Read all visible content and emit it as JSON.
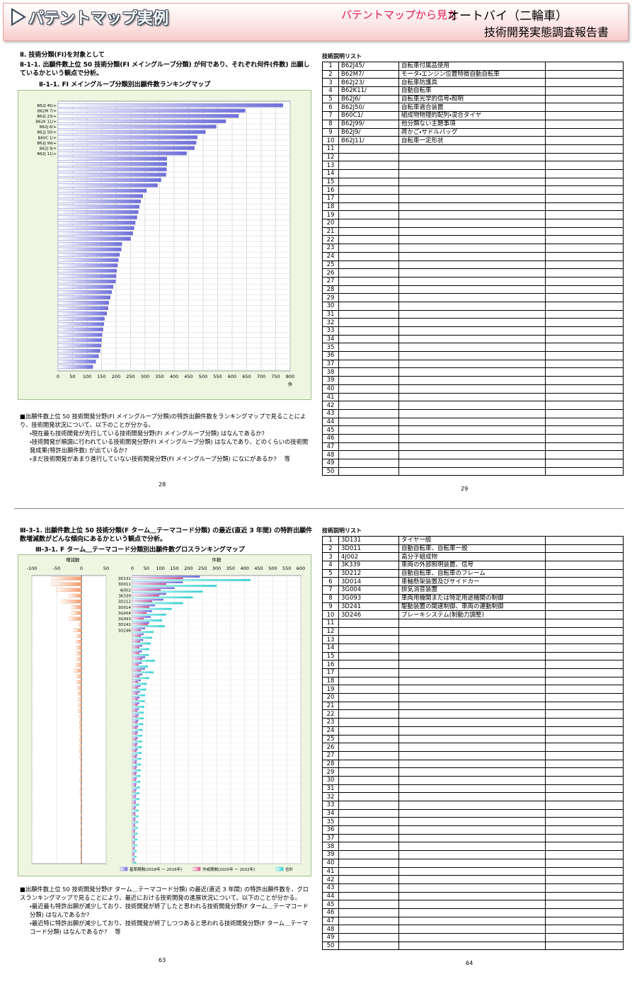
{
  "header": {
    "title": "パテントマップ実例",
    "subtitle": "パテントマップから見た",
    "product": "オートバイ（二輪車）",
    "report": "技術開発実態調査報告書"
  },
  "pages": [
    {
      "section": "Ⅱ. 技術分類(FI)を対象として",
      "heading": "Ⅱ-1-1. 出願件数上位 50 技術分類(FI メイングループ分類) が何であり、それぞれ何件(件数) 出願しているかという観点で分析。",
      "paragraph": "■出願件数上位 50 技術開発分野(FI メイングループ分類)の特許出願件数をランキングマップで見ることにより、技術開発状況について、以下のことが分かる。",
      "bullets": [
        "・現在最も技術開発が先行している技術開発分野(FI メイングループ分類) はなんであるか?",
        "・技術開発が順調に行われている技術開発分野(FI メイングループ分類) はなんであり、どのくらいの技術開発成果(特許出願件数) が出ているか?",
        "・まだ技術開発があまり進行していない技術開発分野(FI メイングループ分類) になにがあるか?　 等"
      ],
      "page_number": 28
    },
    {
      "table_title": "技術説明リスト",
      "page_number": 29,
      "rows": [
        {
          "no": 1,
          "code": "B62J45/",
          "desc": "自転車付属品使用"
        },
        {
          "no": 2,
          "code": "B62M7/",
          "desc": "モータ・エンジン位置特徴自動自転車"
        },
        {
          "no": 3,
          "code": "B62J23/",
          "desc": "自転車防護具"
        },
        {
          "no": 4,
          "code": "B62K11/",
          "desc": "自動自転車"
        },
        {
          "no": 5,
          "code": "B62J6/",
          "desc": "自転車光学的信号・照明"
        },
        {
          "no": 6,
          "code": "B62J50/",
          "desc": "自転車適合装置"
        },
        {
          "no": 7,
          "code": "B60C1/",
          "desc": "組成物物理的配列・混合タイヤ"
        },
        {
          "no": 8,
          "code": "B62J99/",
          "desc": "他分類ない主題事項"
        },
        {
          "no": 9,
          "code": "B62J9/",
          "desc": "荷かご・サドルバッグ"
        },
        {
          "no": 10,
          "code": "B62J11/",
          "desc": "自転車一定形状"
        },
        {
          "no": 11
        },
        {
          "no": 12
        },
        {
          "no": 13
        },
        {
          "no": 14
        },
        {
          "no": 15
        },
        {
          "no": 16
        },
        {
          "no": 17
        },
        {
          "no": 18
        },
        {
          "no": 19
        },
        {
          "no": 20
        },
        {
          "no": 21
        },
        {
          "no": 22
        },
        {
          "no": 23
        },
        {
          "no": 24
        },
        {
          "no": 25
        },
        {
          "no": 26
        },
        {
          "no": 27
        },
        {
          "no": 28
        },
        {
          "no": 29
        },
        {
          "no": 30
        },
        {
          "no": 31
        },
        {
          "no": 32
        },
        {
          "no": 33
        },
        {
          "no": 34
        },
        {
          "no": 35
        },
        {
          "no": 36
        },
        {
          "no": 37
        },
        {
          "no": 38
        },
        {
          "no": 39
        },
        {
          "no": 40
        },
        {
          "no": 41
        },
        {
          "no": 42
        },
        {
          "no": 43
        },
        {
          "no": 44
        },
        {
          "no": 45
        },
        {
          "no": 46
        },
        {
          "no": 47
        },
        {
          "no": 48
        },
        {
          "no": 49
        },
        {
          "no": 50
        }
      ]
    },
    {
      "heading": "Ⅲ-3-1. 出願件数上位 50 技術分類(F ターム＿テーマコード分類) の最近(直近 3 年間) の特許出願件数増減数がどんな傾向にあるかという観点で分析。",
      "paragraph": "■出願件数上位 50 技術開発分野(F ターム＿テーマコード分類) の最近(直近 3 年間) の特許出願件数を、グロスランキングマップで見ることにより、最近における技術開発の進展状況について、以下のことが分かる。",
      "bullets": [
        "・最近最も特許出願が減少しており、技術開発が終了したと思われる技術開発分野(F ターム＿テーマコード分類) はなんであるか?",
        "・最近特に特許出願が減少しており、技術開発が終了しつつあると思われる技術開発分野(F ターム＿テーマコード分類) はなんであるか?　 等"
      ],
      "page_number": 63
    },
    {
      "table_title": "技術説明リスト",
      "page_number": 64,
      "rows": [
        {
          "no": 1,
          "code": "3D131",
          "desc": "タイヤ一般"
        },
        {
          "no": 2,
          "code": "3D011",
          "desc": "自動自転車、自転車一般"
        },
        {
          "no": 3,
          "code": "4J002",
          "desc": "高分子組成物"
        },
        {
          "no": 4,
          "code": "3K339",
          "desc": "車両の外部照明装置、信号"
        },
        {
          "no": 5,
          "code": "3D212",
          "desc": "自動自転車、自転車のフレーム"
        },
        {
          "no": 6,
          "code": "3D014",
          "desc": "車軸懸架装置及びサイドカー"
        },
        {
          "no": 7,
          "code": "3G004",
          "desc": "排気消音装置"
        },
        {
          "no": 8,
          "code": "3G093",
          "desc": "車両用機関または特定用途機関の制御"
        },
        {
          "no": 9,
          "code": "3D241",
          "desc": "駆動装置の関連制御、車両の運動制御"
        },
        {
          "no": 10,
          "code": "3D246",
          "desc": "ブレーキシステム(制動力調整)"
        },
        {
          "no": 11
        },
        {
          "no": 12
        },
        {
          "no": 13
        },
        {
          "no": 14
        },
        {
          "no": 15
        },
        {
          "no": 16
        },
        {
          "no": 17
        },
        {
          "no": 18
        },
        {
          "no": 19
        },
        {
          "no": 20
        },
        {
          "no": 21
        },
        {
          "no": 22
        },
        {
          "no": 23
        },
        {
          "no": 24
        },
        {
          "no": 25
        },
        {
          "no": 26
        },
        {
          "no": 27
        },
        {
          "no": 28
        },
        {
          "no": 29
        },
        {
          "no": 30
        },
        {
          "no": 31
        },
        {
          "no": 32
        },
        {
          "no": 33
        },
        {
          "no": 34
        },
        {
          "no": 35
        },
        {
          "no": 36
        },
        {
          "no": 37
        },
        {
          "no": 38
        },
        {
          "no": 39
        },
        {
          "no": 40
        },
        {
          "no": 41
        },
        {
          "no": 42
        },
        {
          "no": 43
        },
        {
          "no": 44
        },
        {
          "no": 45
        },
        {
          "no": 46
        },
        {
          "no": 47
        },
        {
          "no": 48
        },
        {
          "no": 49
        },
        {
          "no": 50
        }
      ]
    }
  ],
  "chart_data": [
    {
      "type": "bar",
      "orientation": "horizontal",
      "title": "Ⅱ-1-1. FI メイングループ分類別出願件数ランキングマップ",
      "color": "#6f6fd8",
      "grid": true,
      "categories": [
        "B62J 45/+",
        "B62M 7/+",
        "B62J 23/+",
        "B62K 11/+",
        "B62J 6/+",
        "B62J 50/+",
        "B60C 1/+",
        "B62J 99/+",
        "B62J 9/+",
        "B62J 11/+",
        null,
        null,
        null,
        null,
        null,
        null,
        null,
        null,
        null,
        null,
        null,
        null,
        null,
        null,
        null,
        null,
        null,
        null,
        null,
        null,
        null,
        null,
        null,
        null,
        null,
        null,
        null,
        null,
        null,
        null,
        null,
        null,
        null,
        null,
        null,
        null,
        null,
        null,
        null,
        null
      ],
      "values": [
        775,
        645,
        622,
        578,
        545,
        508,
        480,
        476,
        470,
        443,
        375,
        375,
        374,
        372,
        355,
        343,
        305,
        292,
        285,
        280,
        276,
        272,
        266,
        262,
        258,
        250,
        220,
        218,
        212,
        208,
        205,
        202,
        200,
        198,
        190,
        185,
        180,
        175,
        172,
        168,
        160,
        158,
        155,
        152,
        150,
        148,
        145,
        140,
        130,
        120
      ],
      "xlim": [
        0,
        800
      ],
      "xticks": [
        0,
        50,
        100,
        150,
        200,
        250,
        300,
        350,
        400,
        450,
        500,
        550,
        600,
        650,
        700,
        750,
        800
      ],
      "x_label": "件"
    },
    {
      "type": "gross_ranking",
      "title": "Ⅲ-3-1. F ターム＿テーマコード分類別出願件数グロスランキングマップ",
      "grid": true,
      "categories": [
        "3D131",
        "3D011",
        "4J002",
        "3K339",
        "3D212",
        "3D014",
        "3G004",
        "3G093",
        "3D241",
        "3D246",
        null,
        null,
        null,
        null,
        null,
        null,
        null,
        null,
        null,
        null,
        null,
        null,
        null,
        null,
        null,
        null,
        null,
        null,
        null,
        null,
        null,
        null,
        null,
        null,
        null,
        null,
        null,
        null,
        null,
        null,
        null,
        null,
        null,
        null,
        null,
        null,
        null,
        null,
        null,
        null
      ],
      "diff": {
        "label": "増減数",
        "color": "#f29a6a",
        "values": [
          -60,
          -60,
          -50,
          -25,
          -40,
          -20,
          -20,
          -25,
          -5,
          -15,
          -10,
          -11,
          -10,
          -10,
          -10,
          -11,
          -15,
          -10,
          -10,
          -8,
          -7,
          -6,
          -6,
          -6,
          -4,
          -4,
          -4,
          -3,
          -4,
          -3,
          -4,
          -3,
          -2,
          -3,
          -2,
          -3,
          -2,
          -3,
          -2,
          -1,
          -2,
          1,
          -2,
          -1,
          -2,
          -1,
          -2,
          -1,
          -2,
          -1
        ]
      },
      "diff_lim": [
        -100,
        50
      ],
      "diff_ticks": [
        -100,
        -50,
        0,
        50
      ],
      "x_label": "件数",
      "xlim": [
        0,
        600
      ],
      "xticks": [
        0,
        50,
        100,
        150,
        200,
        250,
        300,
        350,
        400,
        450,
        500,
        550,
        600
      ],
      "series": [
        {
          "name": "基準期間(2018年 ～ 2016年)",
          "color": "#6f6fd8",
          "values": [
            240,
            180,
            150,
            120,
            110,
            80,
            70,
            65,
            60,
            45,
            40,
            38,
            35,
            34,
            45,
            33,
            45,
            35,
            30,
            28,
            26,
            25,
            24,
            23,
            22,
            21,
            20,
            19,
            19,
            18,
            18,
            17,
            16,
            16,
            15,
            15,
            14,
            14,
            13,
            12,
            12,
            10,
            11,
            10,
            10,
            9,
            9,
            8,
            8,
            7
          ]
        },
        {
          "name": "作成期間(2020年 ～ 2022年)",
          "color": "#d8508a",
          "values": [
            180,
            120,
            100,
            95,
            70,
            60,
            50,
            40,
            55,
            30,
            30,
            27,
            25,
            24,
            35,
            22,
            30,
            25,
            20,
            20,
            19,
            19,
            18,
            17,
            18,
            17,
            16,
            16,
            15,
            15,
            14,
            14,
            14,
            13,
            13,
            12,
            12,
            11,
            11,
            11,
            10,
            11,
            9,
            9,
            8,
            8,
            7,
            7,
            6,
            6
          ]
        },
        {
          "name": "合計",
          "color": "#2ccfd0",
          "values": [
            420,
            300,
            250,
            215,
            180,
            140,
            120,
            105,
            115,
            75,
            70,
            65,
            60,
            58,
            80,
            55,
            75,
            60,
            50,
            48,
            45,
            44,
            42,
            40,
            40,
            38,
            36,
            35,
            34,
            33,
            32,
            31,
            30,
            29,
            28,
            27,
            26,
            25,
            24,
            23,
            22,
            21,
            20,
            19,
            18,
            17,
            16,
            15,
            14,
            13
          ]
        }
      ]
    }
  ]
}
